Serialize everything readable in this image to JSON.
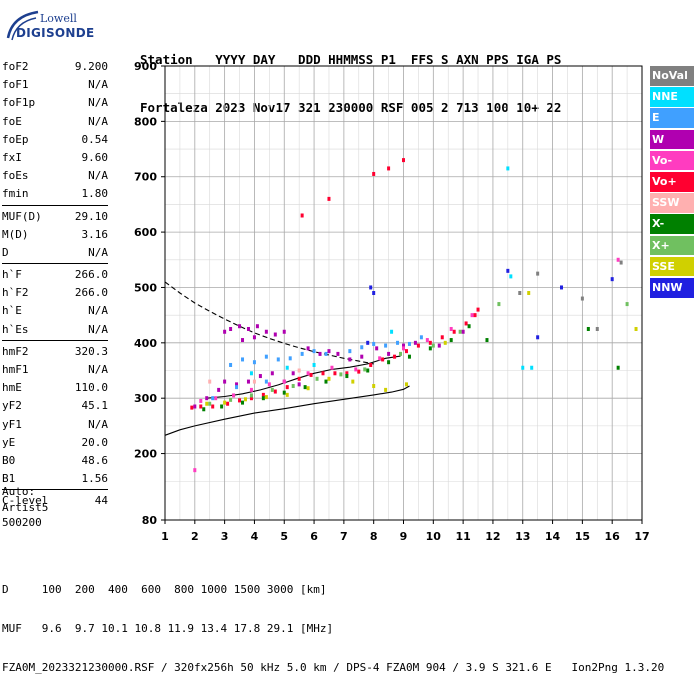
{
  "logo": {
    "top": "Lowell",
    "main": "DIGISONDE"
  },
  "header": {
    "line1": "Station   YYYY DAY   DDD HHMMSS P1  FFS S AXN PPS IGA PS",
    "line2": "Fortaleza 2023 Nov17 321 230000 RSF 005 2 713 100 10+ 22"
  },
  "params": [
    {
      "label": "foF2",
      "value": "9.200"
    },
    {
      "label": "foF1",
      "value": "N/A"
    },
    {
      "label": "foF1p",
      "value": "N/A"
    },
    {
      "label": "foE",
      "value": "N/A"
    },
    {
      "label": "foEp",
      "value": "0.54"
    },
    {
      "label": "fxI",
      "value": "9.60"
    },
    {
      "label": "foEs",
      "value": "N/A"
    },
    {
      "label": "fmin",
      "value": "1.80"
    },
    {
      "label": "MUF(D)",
      "value": "29.10"
    },
    {
      "label": "M(D)",
      "value": "3.16"
    },
    {
      "label": "D",
      "value": "N/A"
    },
    {
      "label": "h`F",
      "value": "266.0"
    },
    {
      "label": "h`F2",
      "value": "266.0"
    },
    {
      "label": "h`E",
      "value": "N/A"
    },
    {
      "label": "h`Es",
      "value": "N/A"
    },
    {
      "label": "hmF2",
      "value": "320.3"
    },
    {
      "label": "hmF1",
      "value": "N/A"
    },
    {
      "label": "hmE",
      "value": "110.0"
    },
    {
      "label": "yF2",
      "value": "45.1"
    },
    {
      "label": "yF1",
      "value": "N/A"
    },
    {
      "label": "yE",
      "value": "20.0"
    },
    {
      "label": "B0",
      "value": "48.6"
    },
    {
      "label": "B1",
      "value": "1.56"
    },
    {
      "label": "C-level",
      "value": "44"
    }
  ],
  "auto": {
    "l1": "Auto:",
    "l2": "Artist5",
    "l3": "500200"
  },
  "legend": [
    {
      "label": "NoVal",
      "color": "#808080",
      "text_color": "#ffffff"
    },
    {
      "label": "NNE",
      "color": "#00e0ff",
      "text_color": "#ffffff"
    },
    {
      "label": "E",
      "color": "#40a0ff",
      "text_color": "#ffffff"
    },
    {
      "label": "W",
      "color": "#b000b0",
      "text_color": "#ffffff"
    },
    {
      "label": "Vo-",
      "color": "#ff3cc0",
      "text_color": "#ffffff"
    },
    {
      "label": "Vo+",
      "color": "#ff0030",
      "text_color": "#ffffff"
    },
    {
      "label": "SSW",
      "color": "#ffb0b0",
      "text_color": "#ffffff"
    },
    {
      "label": "X-",
      "color": "#008000",
      "text_color": "#ffffff"
    },
    {
      "label": "X+",
      "color": "#70c060",
      "text_color": "#ffffff"
    },
    {
      "label": "SSE",
      "color": "#d0d000",
      "text_color": "#ffffff"
    },
    {
      "label": "NNW",
      "color": "#2020e0",
      "text_color": "#ffffff"
    }
  ],
  "footer": {
    "l1": "D     100  200  400  600  800 1000 1500 3000 [km]",
    "l2": "MUF   9.6  9.7 10.1 10.8 11.9 13.4 17.8 29.1 [MHz]",
    "l3": "FZA0M_2023321230000.RSF / 320fx256h 50 kHz 5.0 km / DPS-4 FZA0M 904 / 3.9 S 321.6 E   Ion2Png 1.3.20"
  },
  "chart_data": {
    "type": "scatter",
    "xlim": [
      1,
      17
    ],
    "ylim": [
      80,
      900
    ],
    "x_ticks": [
      "1",
      "2",
      "3",
      "4",
      "5",
      "6",
      "7",
      "8",
      "9",
      "10",
      "11",
      "12",
      "13",
      "14",
      "15",
      "16",
      "17"
    ],
    "y_ticks": [
      "80",
      "200",
      "300",
      "400",
      "500",
      "600",
      "700",
      "800",
      "900"
    ],
    "grid": true,
    "legend_position": "right",
    "series": [
      {
        "name": "W",
        "color": "#b000b0",
        "points": [
          [
            2.0,
            285
          ],
          [
            2.4,
            300
          ],
          [
            2.8,
            315
          ],
          [
            3.0,
            330
          ],
          [
            3.4,
            325
          ],
          [
            3.8,
            330
          ],
          [
            4.2,
            340
          ],
          [
            4.6,
            345
          ],
          [
            5.0,
            330
          ],
          [
            5.3,
            345
          ],
          [
            5.5,
            325
          ],
          [
            3.0,
            420
          ],
          [
            3.2,
            425
          ],
          [
            3.5,
            430
          ],
          [
            3.8,
            425
          ],
          [
            4.1,
            430
          ],
          [
            4.4,
            420
          ],
          [
            4.7,
            415
          ],
          [
            5.0,
            420
          ],
          [
            3.6,
            405
          ],
          [
            4.0,
            410
          ],
          [
            5.8,
            390
          ],
          [
            6.2,
            380
          ],
          [
            6.5,
            385
          ],
          [
            6.8,
            380
          ],
          [
            7.2,
            370
          ],
          [
            7.6,
            375
          ],
          [
            8.1,
            390
          ],
          [
            8.5,
            380
          ],
          [
            9.0,
            395
          ],
          [
            9.4,
            400
          ],
          [
            10.2,
            395
          ],
          [
            11.0,
            420
          ]
        ]
      },
      {
        "name": "Vo+",
        "color": "#ff0030",
        "points": [
          [
            1.9,
            283
          ],
          [
            2.2,
            285
          ],
          [
            2.6,
            285
          ],
          [
            3.1,
            290
          ],
          [
            3.5,
            296
          ],
          [
            3.9,
            300
          ],
          [
            4.3,
            306
          ],
          [
            4.7,
            312
          ],
          [
            5.1,
            320
          ],
          [
            5.5,
            335
          ],
          [
            5.9,
            342
          ],
          [
            6.3,
            345
          ],
          [
            6.7,
            345
          ],
          [
            7.1,
            345
          ],
          [
            7.5,
            348
          ],
          [
            7.9,
            360
          ],
          [
            8.3,
            370
          ],
          [
            8.7,
            375
          ],
          [
            9.1,
            385
          ],
          [
            9.5,
            395
          ],
          [
            9.9,
            400
          ],
          [
            10.3,
            410
          ],
          [
            10.7,
            420
          ],
          [
            11.1,
            435
          ],
          [
            11.4,
            450
          ],
          [
            11.5,
            460
          ],
          [
            8.0,
            705
          ],
          [
            8.5,
            715
          ],
          [
            9.0,
            730
          ],
          [
            5.6,
            630
          ],
          [
            6.5,
            660
          ]
        ]
      },
      {
        "name": "Vo-",
        "color": "#ff3cc0",
        "points": [
          [
            2.2,
            295
          ],
          [
            2.7,
            300
          ],
          [
            3.3,
            305
          ],
          [
            3.9,
            315
          ],
          [
            4.5,
            325
          ],
          [
            5.0,
            330
          ],
          [
            5.8,
            345
          ],
          [
            6.6,
            355
          ],
          [
            7.4,
            352
          ],
          [
            8.2,
            372
          ],
          [
            9.0,
            390
          ],
          [
            9.8,
            405
          ],
          [
            10.6,
            425
          ],
          [
            11.3,
            450
          ],
          [
            2.0,
            170
          ],
          [
            16.2,
            550
          ]
        ]
      },
      {
        "name": "E",
        "color": "#40a0ff",
        "points": [
          [
            3.2,
            360
          ],
          [
            3.6,
            370
          ],
          [
            4.0,
            365
          ],
          [
            4.4,
            375
          ],
          [
            4.8,
            370
          ],
          [
            5.2,
            372
          ],
          [
            5.6,
            380
          ],
          [
            6.0,
            385
          ],
          [
            6.4,
            380
          ],
          [
            7.2,
            385
          ],
          [
            7.6,
            392
          ],
          [
            8.0,
            398
          ],
          [
            8.4,
            395
          ],
          [
            8.8,
            400
          ],
          [
            9.2,
            398
          ],
          [
            9.6,
            410
          ],
          [
            2.6,
            300
          ],
          [
            3.4,
            320
          ],
          [
            4.4,
            330
          ]
        ]
      },
      {
        "name": "NNE",
        "color": "#00e0ff",
        "points": [
          [
            3.9,
            345
          ],
          [
            5.1,
            355
          ],
          [
            6.0,
            360
          ],
          [
            8.6,
            420
          ],
          [
            13.0,
            355
          ],
          [
            13.3,
            355
          ],
          [
            12.5,
            715
          ],
          [
            12.6,
            520
          ]
        ]
      },
      {
        "name": "X-",
        "color": "#008000",
        "points": [
          [
            2.3,
            280
          ],
          [
            2.9,
            285
          ],
          [
            3.6,
            292
          ],
          [
            4.3,
            300
          ],
          [
            5.0,
            310
          ],
          [
            5.7,
            320
          ],
          [
            6.4,
            330
          ],
          [
            7.1,
            340
          ],
          [
            7.8,
            350
          ],
          [
            8.5,
            365
          ],
          [
            9.2,
            375
          ],
          [
            9.9,
            390
          ],
          [
            10.6,
            405
          ],
          [
            11.2,
            430
          ],
          [
            11.8,
            405
          ],
          [
            15.2,
            425
          ],
          [
            16.2,
            355
          ]
        ]
      },
      {
        "name": "X+",
        "color": "#70c060",
        "points": [
          [
            2.5,
            290
          ],
          [
            3.2,
            297
          ],
          [
            3.9,
            305
          ],
          [
            4.6,
            315
          ],
          [
            5.3,
            322
          ],
          [
            6.1,
            335
          ],
          [
            6.9,
            343
          ],
          [
            7.7,
            352
          ],
          [
            8.9,
            380
          ],
          [
            10.0,
            395
          ],
          [
            10.9,
            420
          ],
          [
            12.2,
            470
          ],
          [
            16.5,
            470
          ]
        ]
      },
      {
        "name": "SSE",
        "color": "#d0d000",
        "points": [
          [
            2.4,
            290
          ],
          [
            3.0,
            292
          ],
          [
            3.7,
            298
          ],
          [
            4.4,
            302
          ],
          [
            5.1,
            306
          ],
          [
            5.8,
            318
          ],
          [
            6.5,
            335
          ],
          [
            7.3,
            330
          ],
          [
            8.0,
            322
          ],
          [
            8.4,
            315
          ],
          [
            9.1,
            325
          ],
          [
            10.4,
            400
          ],
          [
            13.2,
            490
          ],
          [
            16.8,
            425
          ]
        ]
      },
      {
        "name": "SSW",
        "color": "#ffb0b0",
        "points": [
          [
            2.5,
            330
          ],
          [
            4.0,
            330
          ],
          [
            5.5,
            350
          ]
        ]
      },
      {
        "name": "NNW",
        "color": "#2020e0",
        "points": [
          [
            7.9,
            500
          ],
          [
            8.0,
            490
          ],
          [
            12.5,
            530
          ],
          [
            14.3,
            500
          ],
          [
            16.0,
            515
          ],
          [
            13.5,
            410
          ],
          [
            7.8,
            400
          ]
        ]
      },
      {
        "name": "NoVal",
        "color": "#808080",
        "points": [
          [
            12.9,
            490
          ],
          [
            13.5,
            525
          ],
          [
            15.0,
            480
          ],
          [
            15.5,
            425
          ],
          [
            16.3,
            545
          ]
        ]
      }
    ],
    "curves": [
      {
        "name": "profile",
        "style": "solid",
        "points": [
          [
            2.4,
            300
          ],
          [
            3.0,
            303
          ],
          [
            3.6,
            308
          ],
          [
            4.2,
            315
          ],
          [
            4.8,
            324
          ],
          [
            5.4,
            335
          ],
          [
            6.0,
            345
          ],
          [
            6.6,
            352
          ],
          [
            7.2,
            356
          ],
          [
            7.8,
            362
          ],
          [
            8.4,
            372
          ],
          [
            8.9,
            376
          ]
        ]
      },
      {
        "name": "lower",
        "style": "solid",
        "points": [
          [
            1.0,
            233
          ],
          [
            1.5,
            243
          ],
          [
            2.0,
            250
          ],
          [
            3.0,
            262
          ],
          [
            4.0,
            273
          ],
          [
            5.0,
            281
          ],
          [
            6.0,
            290
          ],
          [
            7.0,
            298
          ],
          [
            8.0,
            306
          ],
          [
            8.6,
            311
          ],
          [
            9.0,
            316
          ],
          [
            9.2,
            322
          ]
        ]
      },
      {
        "name": "upper",
        "style": "dashed",
        "points": [
          [
            1.0,
            510
          ],
          [
            1.5,
            490
          ],
          [
            2.0,
            472
          ],
          [
            2.5,
            457
          ],
          [
            3.0,
            443
          ],
          [
            3.5,
            430
          ],
          [
            4.0,
            418
          ],
          [
            4.5,
            408
          ],
          [
            5.0,
            399
          ],
          [
            5.5,
            391
          ],
          [
            6.0,
            384
          ],
          [
            6.5,
            378
          ],
          [
            7.0,
            372
          ],
          [
            7.5,
            367
          ],
          [
            8.0,
            362
          ]
        ]
      }
    ]
  }
}
